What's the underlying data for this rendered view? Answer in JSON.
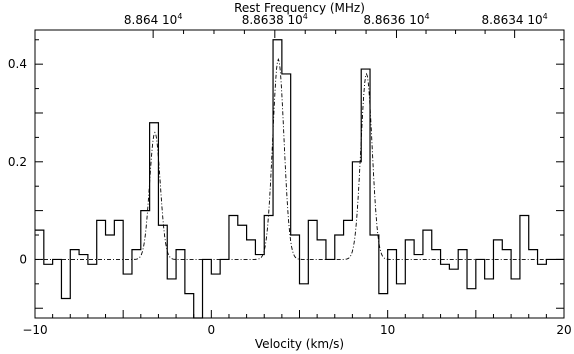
{
  "chart_data": {
    "type": "line",
    "xlabel": "Velocity (km/s)",
    "x2label": "Rest Frequency (MHz)",
    "xlim": [
      -10,
      20
    ],
    "ylim": [
      -0.12,
      0.47
    ],
    "x_ticks": [
      -10,
      0,
      10,
      20
    ],
    "y_ticks": [
      0,
      0.2,
      0.4
    ],
    "y_tick_labels": [
      "0",
      "0.2",
      "0.4"
    ],
    "top_ticks": [
      {
        "velocity": -3.3,
        "mantissa": "8.864",
        "exp": "4"
      },
      {
        "velocity": 3.6,
        "mantissa": "8.8638",
        "exp": "4"
      },
      {
        "velocity": 10.5,
        "mantissa": "8.8636",
        "exp": "4"
      },
      {
        "velocity": 17.2,
        "mantissa": "8.8634",
        "exp": "4"
      }
    ],
    "series": [
      {
        "style": "histogram",
        "x": [
          -10.0,
          -9.5,
          -9.0,
          -8.5,
          -8.0,
          -7.5,
          -7.0,
          -6.5,
          -6.0,
          -5.5,
          -5.0,
          -4.5,
          -4.0,
          -3.5,
          -3.0,
          -2.5,
          -2.0,
          -1.5,
          -1.0,
          -0.5,
          0.0,
          0.5,
          1.0,
          1.5,
          2.0,
          2.5,
          3.0,
          3.5,
          4.0,
          4.5,
          5.0,
          5.5,
          6.0,
          6.5,
          7.0,
          7.5,
          8.0,
          8.5,
          9.0,
          9.5,
          10.0,
          10.5,
          11.0,
          11.5,
          12.0,
          12.5,
          13.0,
          13.5,
          14.0,
          14.5,
          15.0,
          15.5,
          16.0,
          16.5,
          17.0,
          17.5,
          18.0,
          18.5,
          19.0,
          19.5
        ],
        "y": [
          0.06,
          -0.01,
          0.0,
          -0.08,
          0.02,
          0.01,
          -0.01,
          0.08,
          0.05,
          0.08,
          -0.03,
          0.02,
          0.1,
          0.28,
          0.07,
          -0.04,
          0.02,
          -0.07,
          -0.12,
          0.0,
          -0.03,
          0.0,
          0.09,
          0.07,
          0.04,
          0.01,
          0.09,
          0.45,
          0.38,
          0.05,
          -0.05,
          0.08,
          0.04,
          0.0,
          0.05,
          0.08,
          0.2,
          0.39,
          0.05,
          -0.07,
          0.02,
          -0.05,
          0.04,
          0.01,
          0.06,
          0.02,
          -0.01,
          -0.02,
          0.02,
          -0.06,
          0.0,
          -0.04,
          0.04,
          0.02,
          -0.04,
          0.09,
          0.02,
          -0.01,
          0.0,
          0.0
        ]
      },
      {
        "style": "dash-dot",
        "baseline": 0.0,
        "peaks": [
          {
            "center": -3.2,
            "amplitude": 0.26,
            "sigma": 0.3
          },
          {
            "center": 3.8,
            "amplitude": 0.41,
            "sigma": 0.32
          },
          {
            "center": 8.8,
            "amplitude": 0.38,
            "sigma": 0.32
          }
        ]
      }
    ]
  }
}
